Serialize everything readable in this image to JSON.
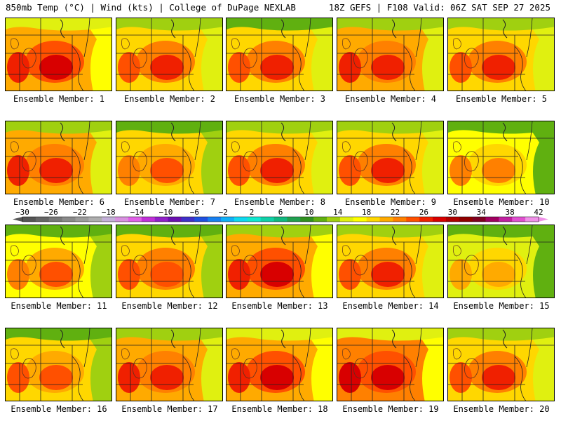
{
  "header": {
    "left": "850mb Temp (°C) | Wind (kts) | College of DuPage NEXLAB",
    "right": "18Z GEFS | F108 Valid: 06Z SAT SEP 27 2025"
  },
  "members": [
    {
      "label": "Ensemble Member: 1",
      "warmth": 0.72
    },
    {
      "label": "Ensemble Member: 2",
      "warmth": 0.62
    },
    {
      "label": "Ensemble Member: 3",
      "warmth": 0.6
    },
    {
      "label": "Ensemble Member: 4",
      "warmth": 0.66
    },
    {
      "label": "Ensemble Member: 5",
      "warmth": 0.64
    },
    {
      "label": "Ensemble Member: 6",
      "warmth": 0.66
    },
    {
      "label": "Ensemble Member: 7",
      "warmth": 0.54
    },
    {
      "label": "Ensemble Member: 8",
      "warmth": 0.62
    },
    {
      "label": "Ensemble Member: 9",
      "warmth": 0.64
    },
    {
      "label": "Ensemble Member: 10",
      "warmth": 0.44
    },
    {
      "label": "Ensemble Member: 11",
      "warmth": 0.5
    },
    {
      "label": "Ensemble Member: 12",
      "warmth": 0.58
    },
    {
      "label": "Ensemble Member: 13",
      "warmth": 0.7
    },
    {
      "label": "Ensemble Member: 14",
      "warmth": 0.64
    },
    {
      "label": "Ensemble Member: 15",
      "warmth": 0.36
    },
    {
      "label": "Ensemble Member: 16",
      "warmth": 0.56
    },
    {
      "label": "Ensemble Member: 17",
      "warmth": 0.66
    },
    {
      "label": "Ensemble Member: 18",
      "warmth": 0.76
    },
    {
      "label": "Ensemble Member: 19",
      "warmth": 0.78
    },
    {
      "label": "Ensemble Member: 20",
      "warmth": 0.62
    }
  ],
  "colorbar": {
    "range": [
      -30,
      42
    ],
    "ticks": [
      "−30",
      "−26",
      "−22",
      "−18",
      "−14",
      "−10",
      "−6",
      "−2",
      "2",
      "6",
      "10",
      "14",
      "18",
      "22",
      "26",
      "30",
      "34",
      "38",
      "42"
    ],
    "colors": [
      "#555555",
      "#666666",
      "#787878",
      "#8a8a8a",
      "#9c9c9c",
      "#aeaeae",
      "#c4b0d8",
      "#d890e0",
      "#e060e8",
      "#c030d8",
      "#9020c8",
      "#6a10b0",
      "#4030c8",
      "#2050e0",
      "#1880f0",
      "#10b0f8",
      "#10d8f0",
      "#10e8d0",
      "#10d0a8",
      "#10b880",
      "#20a050",
      "#309020",
      "#60b010",
      "#a0d010",
      "#e0f010",
      "#ffff00",
      "#ffd700",
      "#ffaa00",
      "#ff8000",
      "#ff5000",
      "#f02000",
      "#d80000",
      "#b00000",
      "#900000",
      "#800020",
      "#a00060",
      "#c020a0",
      "#e050d0",
      "#f090e8"
    ]
  }
}
